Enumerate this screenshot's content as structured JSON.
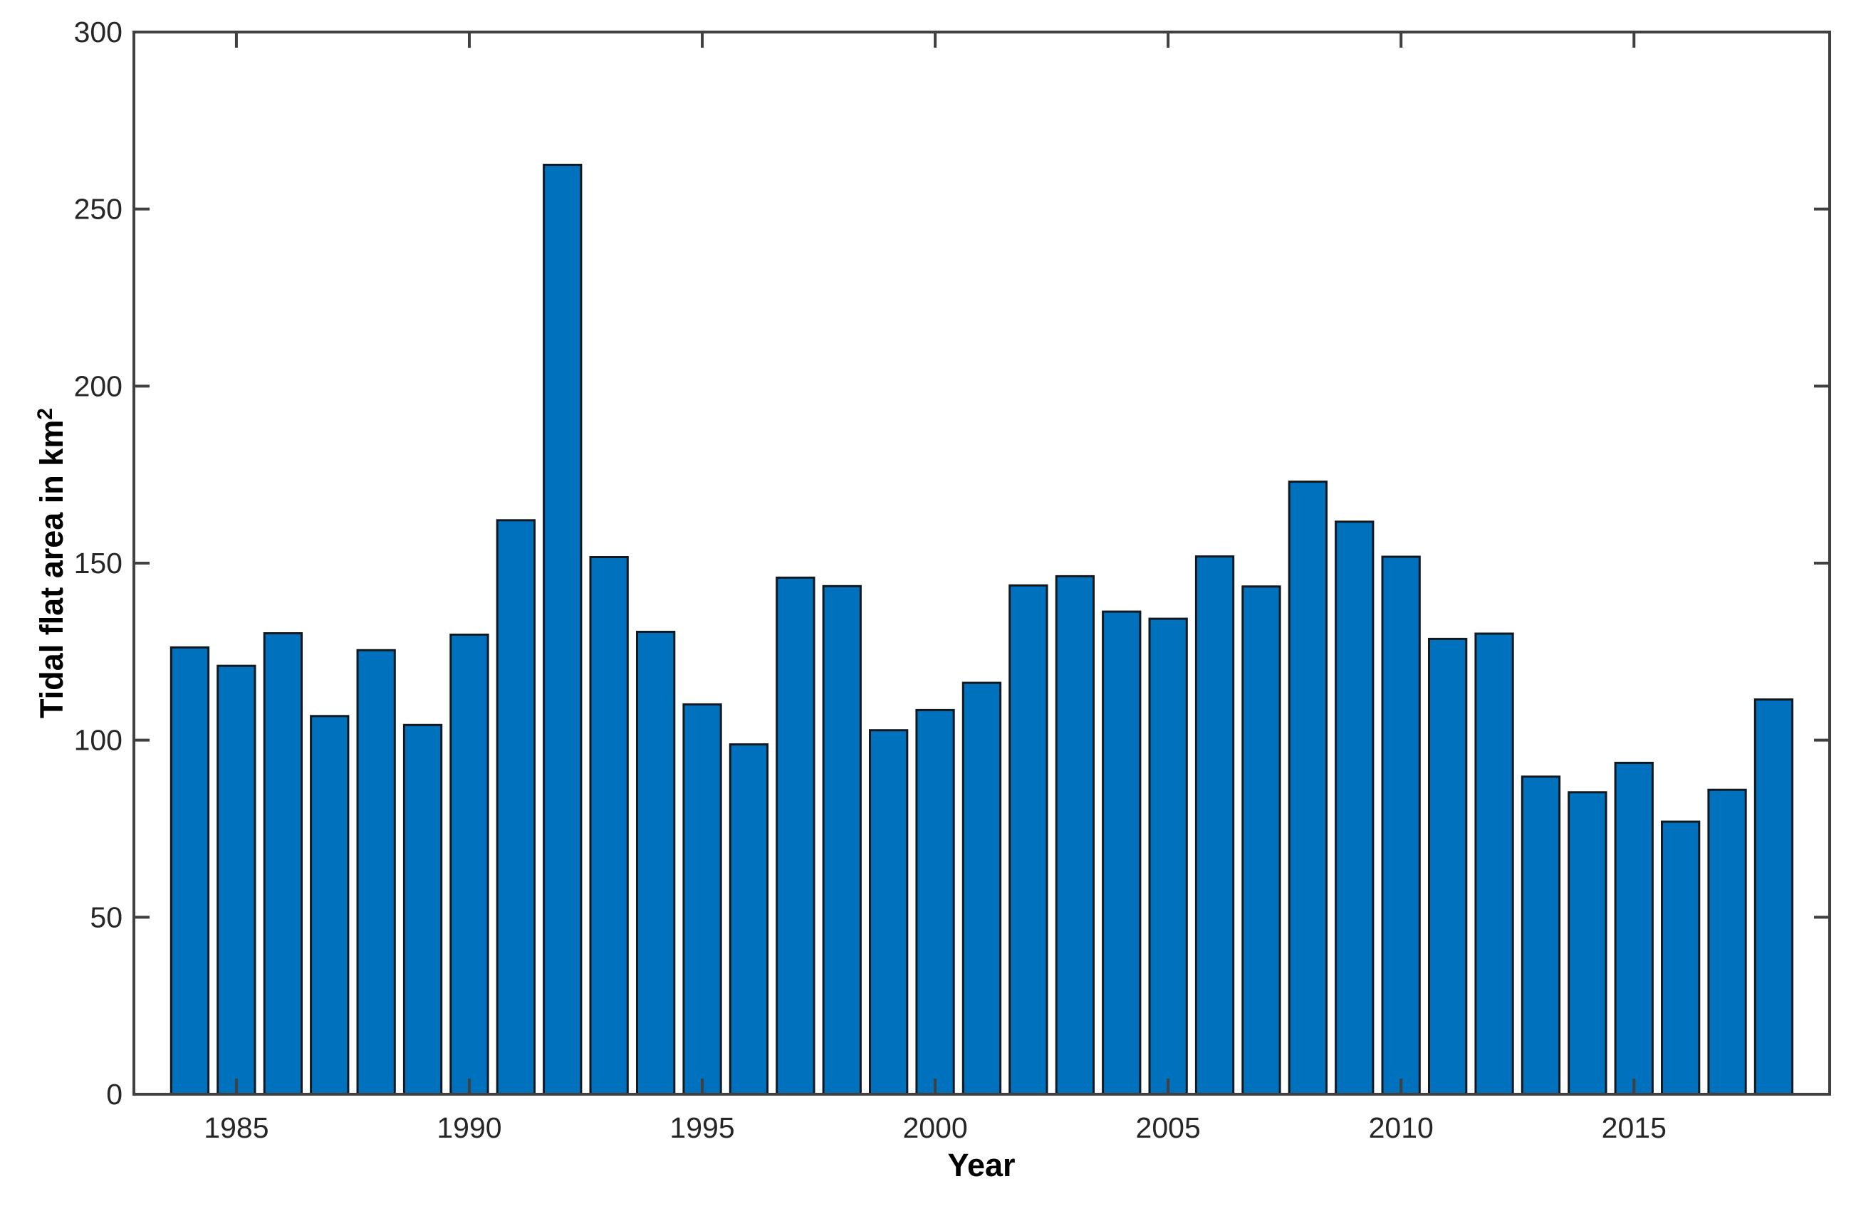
{
  "chart_data": {
    "type": "bar",
    "title": "",
    "xlabel": "Year",
    "ylabel": "Tidal flat area in km",
    "ylabel_superscript": "2",
    "categories": [
      1984,
      1985,
      1986,
      1987,
      1988,
      1989,
      1990,
      1991,
      1992,
      1993,
      1994,
      1995,
      1996,
      1997,
      1998,
      1999,
      2000,
      2001,
      2002,
      2003,
      2004,
      2005,
      2006,
      2007,
      2008,
      2009,
      2010,
      2011,
      2012,
      2013,
      2014,
      2015,
      2016,
      2017,
      2018
    ],
    "values": [
      126.2,
      121.0,
      130.2,
      106.8,
      125.4,
      104.3,
      129.8,
      162.1,
      262.5,
      151.7,
      130.6,
      110.1,
      98.8,
      145.9,
      143.5,
      102.8,
      108.5,
      116.2,
      143.7,
      146.3,
      136.3,
      134.3,
      151.9,
      143.4,
      173.0,
      161.7,
      151.8,
      128.6,
      130.1,
      89.7,
      85.3,
      93.6,
      77.0,
      86.0,
      111.5
    ],
    "xticks": [
      1985,
      1990,
      1995,
      2000,
      2005,
      2010,
      2015
    ],
    "yticks": [
      0,
      50,
      100,
      150,
      200,
      250,
      300
    ],
    "xlim": [
      1982.8,
      2019.2
    ],
    "ylim": [
      0,
      300
    ],
    "bar_width": 0.8,
    "grid": false,
    "legend": null,
    "box": true,
    "tick_direction": "in",
    "colors": {
      "bar_fill": "#0072BD",
      "bar_edge": "#101820",
      "axis_line": "#404040",
      "tick_mark": "#404040",
      "tick_label": "#262626",
      "axis_label": "#000000",
      "background": "#ffffff"
    }
  }
}
